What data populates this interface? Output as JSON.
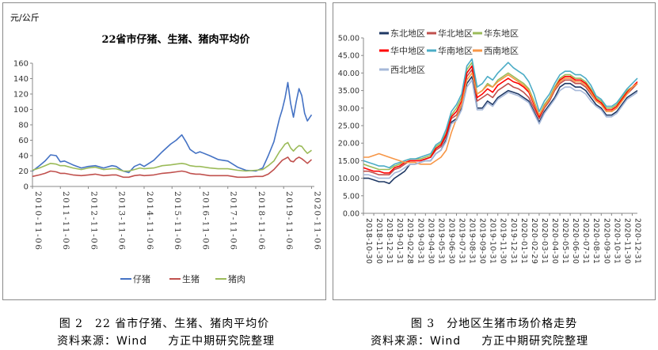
{
  "figure_left": {
    "caption": "图 2　22 省市仔猪、生猪、猪肉平均价",
    "source_label": "资料来源：",
    "source_name": "Wind",
    "source_org": "方正中期研究院整理"
  },
  "figure_right": {
    "caption": "图 3　分地区生猪市场价格走势",
    "source_label": "资料来源：",
    "source_name": "Wind",
    "source_org": "方正中期研究院整理"
  },
  "chart_data": [
    {
      "type": "line",
      "title": "22省市仔猪、生猪、猪肉平均价",
      "ylabel": "元/公斤",
      "xlabel": "",
      "ylim": [
        0,
        160
      ],
      "yticks": [
        "0",
        "20",
        "40",
        "60",
        "80",
        "100",
        "120",
        "140",
        "160"
      ],
      "x_tick_labels": [
        "2010-11-06",
        "2011-11-06",
        "2012-11-06",
        "2013-11-06",
        "2014-11-06",
        "2015-11-06",
        "2016-11-06",
        "2017-11-06",
        "2018-11-06",
        "2019-11-06",
        "2020-11-06"
      ],
      "grid": false,
      "legend": "bottom",
      "x": [
        2010.85,
        2011.1,
        2011.3,
        2011.5,
        2011.7,
        2011.85,
        2012.0,
        2012.3,
        2012.6,
        2012.85,
        2013.1,
        2013.4,
        2013.7,
        2013.85,
        2014.1,
        2014.3,
        2014.5,
        2014.7,
        2014.85,
        2015.2,
        2015.5,
        2015.8,
        2016.0,
        2016.2,
        2016.35,
        2016.5,
        2016.7,
        2016.85,
        2017.2,
        2017.5,
        2017.85,
        2018.2,
        2018.5,
        2018.85,
        2019.1,
        2019.3,
        2019.5,
        2019.7,
        2019.8,
        2019.9,
        2020.0,
        2020.1,
        2020.2,
        2020.3,
        2020.4,
        2020.5,
        2020.6,
        2020.7,
        2020.85
      ],
      "series": [
        {
          "name": "仔猪",
          "color": "#4472C4",
          "values": [
            20,
            27,
            33,
            41,
            40,
            32,
            33,
            28,
            24,
            26,
            27,
            24,
            27,
            26,
            20,
            18,
            26,
            29,
            26,
            34,
            45,
            55,
            60,
            67,
            58,
            48,
            43,
            45,
            40,
            35,
            33,
            25,
            21,
            20,
            24,
            40,
            58,
            88,
            100,
            115,
            135,
            108,
            90,
            110,
            127,
            118,
            95,
            85,
            93
          ]
        },
        {
          "name": "生猪",
          "color": "#C0504D",
          "values": [
            13,
            15,
            17,
            20,
            19,
            17,
            17,
            15,
            14,
            15,
            16,
            14,
            15,
            15,
            12,
            12,
            14,
            15,
            14,
            15,
            17,
            18,
            19,
            20,
            19,
            17,
            16,
            16,
            14,
            14,
            14,
            12,
            12,
            13,
            13,
            16,
            22,
            30,
            34,
            36,
            38,
            33,
            32,
            36,
            38,
            36,
            33,
            30,
            35
          ]
        },
        {
          "name": "猪肉",
          "color": "#9BBB59",
          "values": [
            21,
            24,
            27,
            30,
            29,
            27,
            27,
            24,
            22,
            24,
            25,
            22,
            23,
            23,
            20,
            20,
            22,
            24,
            23,
            24,
            27,
            28,
            29,
            30,
            29,
            27,
            26,
            26,
            24,
            23,
            23,
            21,
            20,
            21,
            22,
            27,
            33,
            45,
            50,
            55,
            57,
            50,
            46,
            50,
            53,
            52,
            47,
            43,
            47
          ]
        }
      ]
    },
    {
      "type": "line",
      "title": "",
      "xlabel": "",
      "ylabel": "",
      "ylim": [
        0,
        50
      ],
      "yticks": [
        "0.00",
        "5.00",
        "10.00",
        "15.00",
        "20.00",
        "25.00",
        "30.00",
        "35.00",
        "40.00",
        "45.00",
        "50.00"
      ],
      "x_tick_labels": [
        "2018-10-30",
        "2018-11-30",
        "2018-12-31",
        "2019-01-31",
        "2019-02-28",
        "2019-03-31",
        "2019-04-30",
        "2019-05-31",
        "2019-06-30",
        "2019-07-31",
        "2019-08-31",
        "2019-09-30",
        "2019-10-31",
        "2019-11-30",
        "2019-12-31",
        "2020-01-31",
        "2020-02-29",
        "2020-03-31",
        "2020-04-30",
        "2020-05-31",
        "2020-06-30",
        "2020-07-31",
        "2020-08-31",
        "2020-09-30",
        "2020-10-31",
        "2020-11-30",
        "2020-12-31"
      ],
      "grid": false,
      "legend": "top-left",
      "x": [
        0,
        0.5,
        1,
        1.5,
        2,
        2.5,
        3,
        3.5,
        4,
        4.5,
        5,
        5.5,
        6,
        6.5,
        7,
        7.5,
        8,
        8.5,
        9,
        9.5,
        10,
        10.5,
        11,
        11.5,
        12,
        12.5,
        13,
        13.5,
        14,
        14.5,
        15,
        15.5,
        16,
        16.5,
        17,
        17.5,
        18,
        18.5,
        19,
        19.5,
        20,
        20.5,
        21,
        21.5,
        22,
        22.5,
        23,
        23.5,
        24,
        24.5,
        25,
        25.5,
        26,
        26.5
      ],
      "series": [
        {
          "name": "东北地区",
          "color": "#1F3864",
          "values": [
            10,
            10,
            9.5,
            9,
            9,
            8.5,
            10,
            11,
            12,
            14,
            14,
            14.5,
            15,
            15,
            17,
            18,
            21,
            26,
            27,
            30,
            37,
            39,
            30,
            30,
            32,
            31,
            33,
            34,
            35,
            34.5,
            34,
            33,
            32,
            29,
            26,
            29,
            31,
            33,
            36,
            37,
            37,
            36,
            36,
            35,
            33,
            31,
            30,
            28,
            28,
            29,
            31,
            33,
            34,
            35
          ]
        },
        {
          "name": "华北地区",
          "color": "#C0504D",
          "values": [
            12,
            12,
            11.5,
            11,
            11,
            11,
            12.5,
            13,
            14,
            15,
            15,
            15,
            15.5,
            16,
            18,
            19,
            22,
            27,
            28,
            31,
            39,
            41,
            32,
            33,
            34,
            33,
            35,
            36,
            37,
            36,
            35.5,
            34.5,
            33,
            30,
            27,
            30,
            32,
            35,
            37,
            38,
            38,
            37,
            37,
            36,
            34,
            32,
            31,
            29,
            29,
            30,
            32,
            34,
            35.5,
            37
          ]
        },
        {
          "name": "华东地区",
          "color": "#9BBB59",
          "values": [
            14,
            13.5,
            13,
            12.5,
            12.5,
            12.5,
            13.5,
            14,
            15,
            15.5,
            15.5,
            15.5,
            16,
            16.5,
            19,
            20,
            23,
            28,
            30,
            33,
            41,
            43,
            34,
            35,
            37,
            36,
            38,
            39,
            40,
            39,
            38,
            37,
            35.5,
            32,
            28,
            31,
            33,
            36,
            38.5,
            39.5,
            39.5,
            38.5,
            38.5,
            37.5,
            35.5,
            33,
            32,
            30,
            30,
            31,
            33,
            35,
            36,
            37
          ]
        },
        {
          "name": "华中地区",
          "color": "#FF0000",
          "values": [
            13,
            12.5,
            12,
            12,
            11.5,
            11.5,
            13,
            13.5,
            14.5,
            15,
            15,
            15,
            15.5,
            16,
            18.5,
            19.5,
            22.5,
            27.5,
            29,
            32,
            40,
            42,
            33,
            34,
            35.5,
            34.5,
            36.5,
            37.5,
            38.5,
            37.5,
            37,
            36,
            34.5,
            31,
            27.5,
            30.5,
            32.5,
            35.5,
            38,
            39,
            39,
            38,
            38,
            37,
            35,
            32.5,
            31.5,
            29.5,
            29.5,
            30.5,
            32.5,
            34.5,
            36,
            37.5
          ]
        },
        {
          "name": "华南地区",
          "color": "#4BACC6",
          "values": [
            15,
            14.5,
            14,
            13.5,
            13.5,
            13,
            14,
            14.5,
            15,
            15.5,
            15.5,
            16,
            16.5,
            17,
            19.5,
            20.5,
            24,
            29,
            31,
            34,
            42,
            44,
            36,
            37,
            39,
            38,
            40,
            41.5,
            43,
            41.5,
            40.5,
            39.5,
            37.5,
            34,
            29,
            32,
            34,
            37,
            39.5,
            40.5,
            40.5,
            39.5,
            39.5,
            38.5,
            36.5,
            33.5,
            32.5,
            30.5,
            30.5,
            31.5,
            33.5,
            35.5,
            37,
            38.5
          ]
        },
        {
          "name": "西南地区",
          "color": "#F79646",
          "values": [
            16,
            16,
            16.5,
            17,
            16.5,
            16,
            15.5,
            15,
            14.5,
            14.5,
            14.5,
            14,
            14,
            14,
            15,
            16,
            18,
            23,
            27,
            31,
            38,
            40,
            34,
            35,
            36.5,
            36,
            37.5,
            38.5,
            39.5,
            38.5,
            37.5,
            36.5,
            35,
            31.5,
            28,
            30.5,
            32.5,
            35.5,
            37.5,
            38.5,
            38.5,
            37.5,
            37.5,
            36.5,
            34.5,
            32,
            31,
            29,
            29,
            30,
            32,
            34,
            36,
            37
          ]
        },
        {
          "name": "西北地区",
          "color": "#A6B8D9",
          "values": [
            11,
            11,
            10.5,
            10,
            10,
            10,
            11.5,
            12,
            13,
            14,
            14,
            14.5,
            15,
            15,
            17,
            18,
            20.5,
            25.5,
            26.5,
            29.5,
            36,
            38,
            29.5,
            29.5,
            31.5,
            30.5,
            32.5,
            33.5,
            34.5,
            34,
            33.5,
            32.5,
            31.5,
            28.5,
            25.5,
            28.5,
            30.5,
            32.5,
            35,
            36,
            36,
            35,
            35,
            34,
            32,
            30.5,
            29.5,
            27.5,
            27.5,
            28.5,
            30.5,
            32.5,
            33.5,
            34.5
          ]
        }
      ]
    }
  ]
}
